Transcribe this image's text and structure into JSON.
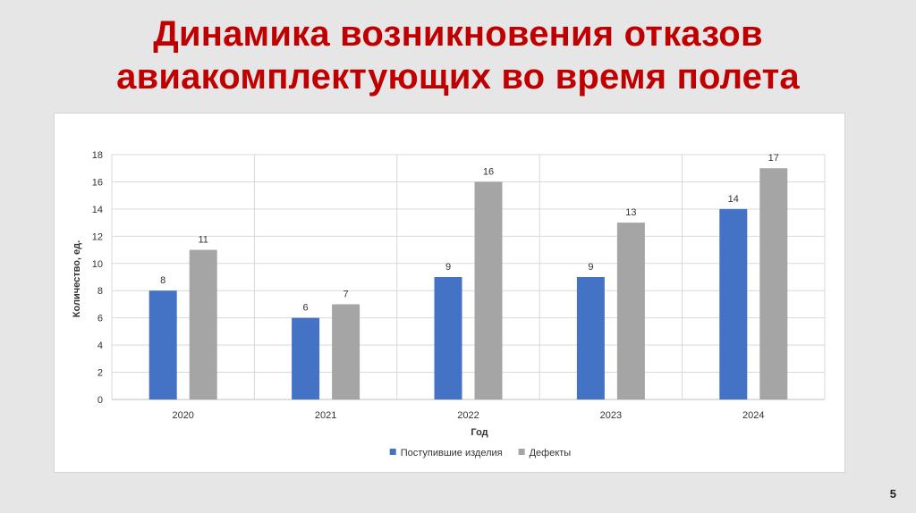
{
  "slide": {
    "title_line1": "Динамика возникновения отказов",
    "title_line2": "авиакомплектующих во время полета",
    "page_number": "5",
    "title_color": "#c00000"
  },
  "chart_data": {
    "type": "bar",
    "categories": [
      "2020",
      "2021",
      "2022",
      "2023",
      "2024"
    ],
    "series": [
      {
        "name": "Поступившие изделия",
        "values": [
          8,
          6,
          9,
          9,
          14
        ],
        "color": "#4472c4"
      },
      {
        "name": "Дефекты",
        "values": [
          11,
          7,
          16,
          13,
          17
        ],
        "color": "#a5a5a5"
      }
    ],
    "title": "",
    "xlabel": "Год",
    "ylabel": "Количество, ед.",
    "ylim": [
      0,
      18
    ],
    "yticks": [
      0,
      2,
      4,
      6,
      8,
      10,
      12,
      14,
      16,
      18
    ],
    "grid": true,
    "data_labels": true,
    "legend_position": "bottom"
  }
}
